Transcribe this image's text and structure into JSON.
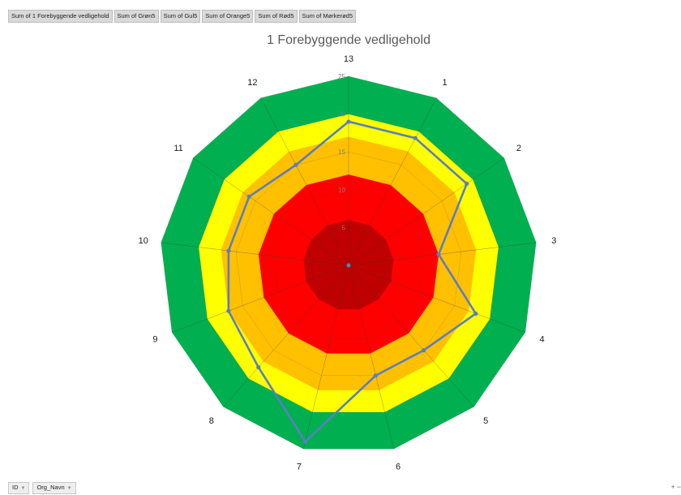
{
  "field_buttons": [
    "Sum of 1 Forebyggende vedligehold",
    "Sum of Grøn5",
    "Sum of Gul5",
    "Sum of Orange5",
    "Sum of Rød5",
    "Sum of Mørkerød5"
  ],
  "axis_buttons": [
    "ID",
    "Org_Navn"
  ],
  "zoom": {
    "plus": "+",
    "minus": "−"
  },
  "chart_data": {
    "type": "radar",
    "title": "1 Forebyggende vedligehold",
    "categories": [
      "13",
      "1",
      "2",
      "3",
      "4",
      "5",
      "6",
      "7",
      "8",
      "9",
      "10",
      "11",
      "12"
    ],
    "rmax": 25,
    "ticks": [
      5,
      10,
      15,
      20,
      25
    ],
    "grid": true,
    "legend": "none",
    "bands": [
      {
        "name": "Sum of Grøn5",
        "value": 25,
        "color": "#00b050"
      },
      {
        "name": "Sum of Gul5",
        "value": 20,
        "color": "#ffff00"
      },
      {
        "name": "Sum of Orange5",
        "value": 17,
        "color": "#ffc000"
      },
      {
        "name": "Sum of Rød5",
        "value": 12,
        "color": "#ff0000"
      },
      {
        "name": "Sum of Mørkerød5",
        "value": 6,
        "color": "#c00000"
      }
    ],
    "series": [
      {
        "name": "Sum of 1 Forebyggende vedligehold",
        "color": "#5a7fc0",
        "values": [
          19,
          19,
          19,
          12,
          18,
          15,
          15,
          24,
          18,
          17,
          16,
          16,
          15
        ]
      }
    ]
  }
}
